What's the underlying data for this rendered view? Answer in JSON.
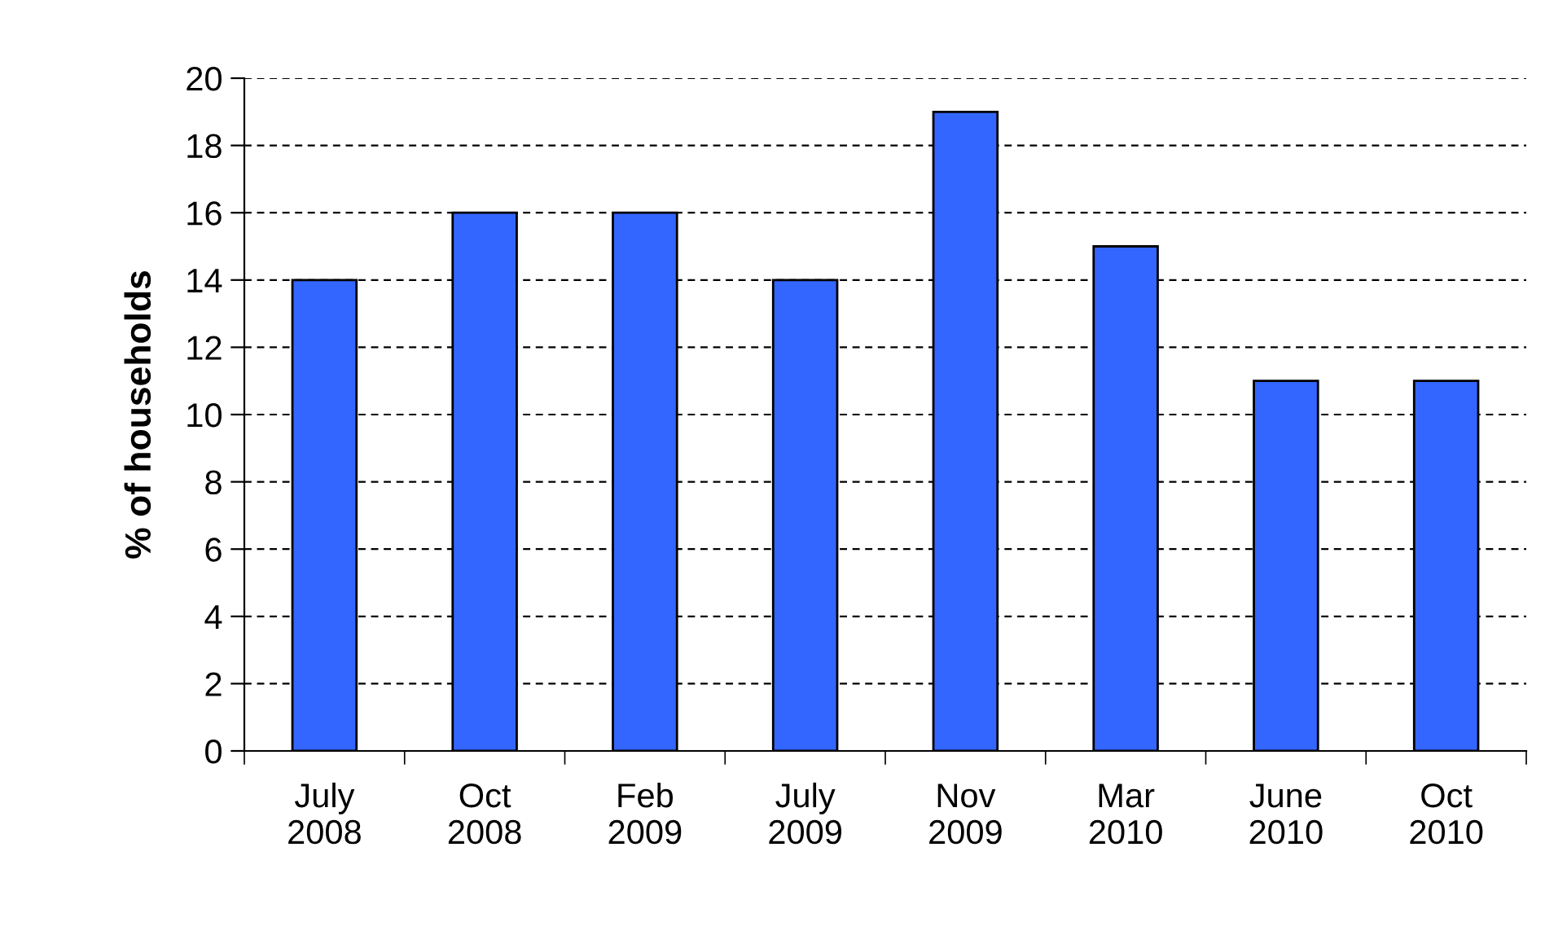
{
  "chart_data": {
    "type": "bar",
    "ylabel": "% of households",
    "categories": [
      "July\n2008",
      "Oct\n2008",
      "Feb\n2009",
      "July\n2009",
      "Nov\n2009",
      "Mar\n2010",
      "June\n2010",
      "Oct\n2010"
    ],
    "values": [
      14,
      16,
      16,
      14,
      19,
      15,
      11,
      11
    ],
    "color": "#3366ff",
    "ylim": [
      0,
      20
    ],
    "yticks": [
      0,
      2,
      4,
      6,
      8,
      10,
      12,
      14,
      16,
      18,
      20
    ],
    "grid": "y",
    "legend": false
  }
}
